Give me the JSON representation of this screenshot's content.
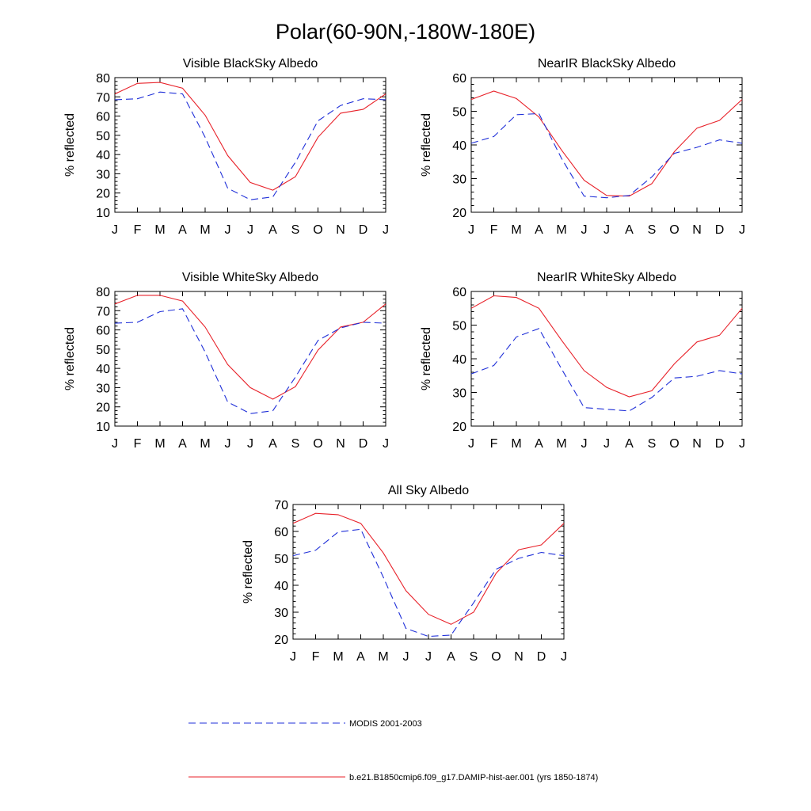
{
  "figure_title": "Polar(60-90N,-180W-180E)",
  "colors": {
    "model": "#e8222a",
    "modis": "#1f2fd8"
  },
  "legend": {
    "modis_label": "MODIS 2001-2003",
    "model_label": "b.e21.B1850cmip6.f09_g17.DAMIP-hist-aer.001 (yrs 1850-1874)"
  },
  "chart_data": [
    {
      "type": "line",
      "title": "Visible BlackSky Albedo",
      "ylabel": "% reflected",
      "xlabel": "",
      "categories": [
        "J",
        "F",
        "M",
        "A",
        "M",
        "J",
        "J",
        "A",
        "S",
        "O",
        "N",
        "D",
        "J"
      ],
      "ylim": [
        10,
        80
      ],
      "yticks": [
        10,
        20,
        30,
        40,
        50,
        60,
        70,
        80
      ],
      "series": [
        {
          "key": "model",
          "values": [
            71.5,
            77,
            77.5,
            74.5,
            60.5,
            39.5,
            25.5,
            21.5,
            28.5,
            49,
            61.5,
            63.5,
            71.5
          ]
        },
        {
          "key": "modis",
          "values": [
            68.5,
            69,
            72.5,
            71.5,
            49,
            22.5,
            16.5,
            18,
            36,
            57.5,
            65.5,
            69,
            68.5
          ]
        }
      ]
    },
    {
      "type": "line",
      "title": "NearIR BlackSky Albedo",
      "ylabel": "% reflected",
      "xlabel": "",
      "categories": [
        "J",
        "F",
        "M",
        "A",
        "M",
        "J",
        "J",
        "A",
        "S",
        "O",
        "N",
        "D",
        "J"
      ],
      "ylim": [
        20,
        60
      ],
      "yticks": [
        20,
        30,
        40,
        50,
        60
      ],
      "series": [
        {
          "key": "model",
          "values": [
            53.5,
            56,
            53.8,
            48.3,
            38.5,
            29.5,
            25,
            24.8,
            28.5,
            38,
            45,
            47.3,
            53.5
          ]
        },
        {
          "key": "modis",
          "values": [
            40.5,
            42.5,
            49,
            49.3,
            36,
            24.8,
            24.3,
            25,
            30.5,
            37.5,
            39.3,
            41.5,
            40.5
          ]
        }
      ]
    },
    {
      "type": "line",
      "title": "Visible WhiteSky Albedo",
      "ylabel": "% reflected",
      "xlabel": "",
      "categories": [
        "J",
        "F",
        "M",
        "A",
        "M",
        "J",
        "J",
        "A",
        "S",
        "O",
        "N",
        "D",
        "J"
      ],
      "ylim": [
        10,
        80
      ],
      "yticks": [
        10,
        20,
        30,
        40,
        50,
        60,
        70,
        80
      ],
      "series": [
        {
          "key": "model",
          "values": [
            73.5,
            78,
            78,
            75,
            61.5,
            42,
            30,
            24,
            30.5,
            49.5,
            61.5,
            64,
            73.5
          ]
        },
        {
          "key": "modis",
          "values": [
            63.5,
            64,
            69.5,
            71,
            48.5,
            22.5,
            16.5,
            18,
            35.5,
            54.5,
            61,
            64,
            63.5
          ]
        }
      ]
    },
    {
      "type": "line",
      "title": "NearIR WhiteSky Albedo",
      "ylabel": "% reflected",
      "xlabel": "",
      "categories": [
        "J",
        "F",
        "M",
        "A",
        "M",
        "J",
        "J",
        "A",
        "S",
        "O",
        "N",
        "D",
        "J"
      ],
      "ylim": [
        20,
        60
      ],
      "yticks": [
        20,
        30,
        40,
        50,
        60
      ],
      "series": [
        {
          "key": "model",
          "values": [
            55,
            58.7,
            58.2,
            55,
            45.5,
            36.5,
            31.5,
            28.7,
            30.5,
            38.5,
            45,
            47,
            55
          ]
        },
        {
          "key": "modis",
          "values": [
            35.5,
            38,
            46.5,
            49,
            37,
            25.5,
            25,
            24.5,
            28.5,
            34.3,
            34.8,
            36.5,
            35.5
          ]
        }
      ]
    },
    {
      "type": "line",
      "title": "All Sky Albedo",
      "ylabel": "% reflected",
      "xlabel": "",
      "categories": [
        "J",
        "F",
        "M",
        "A",
        "M",
        "J",
        "J",
        "A",
        "S",
        "O",
        "N",
        "D",
        "J"
      ],
      "ylim": [
        20,
        70
      ],
      "yticks": [
        20,
        30,
        40,
        50,
        60,
        70
      ],
      "series": [
        {
          "key": "model",
          "values": [
            63,
            66.7,
            66.2,
            63,
            52,
            38,
            29.2,
            25.5,
            30,
            44.5,
            53.2,
            55,
            63
          ]
        },
        {
          "key": "modis",
          "values": [
            51,
            53,
            59.8,
            60.8,
            43,
            24,
            21,
            21.5,
            33.5,
            46,
            50,
            52.2,
            51
          ]
        }
      ]
    }
  ]
}
